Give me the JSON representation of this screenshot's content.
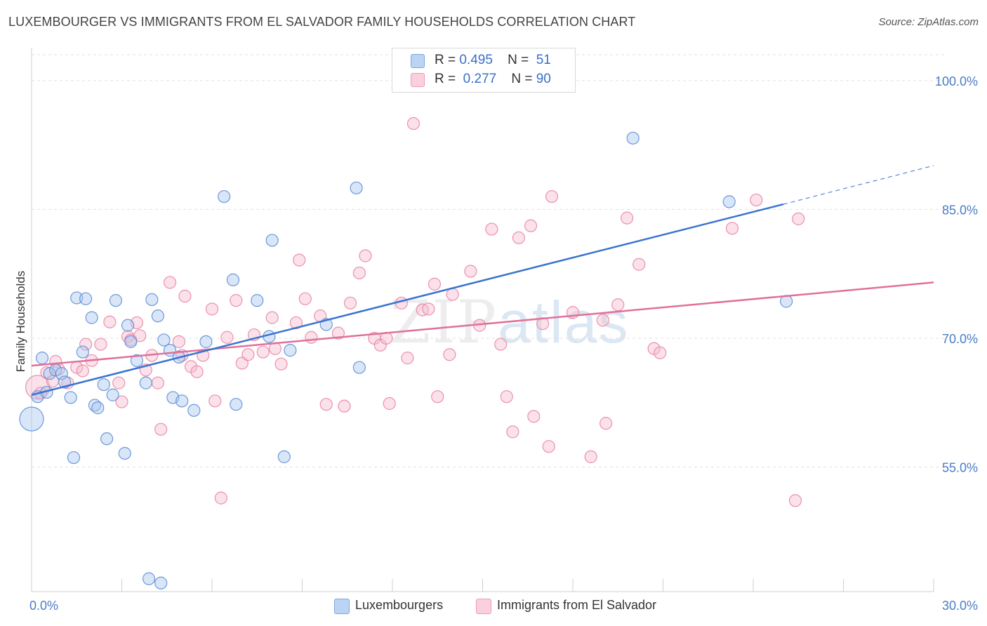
{
  "title": "LUXEMBOURGER VS IMMIGRANTS FROM EL SALVADOR FAMILY HOUSEHOLDS CORRELATION CHART",
  "source": "Source: ZipAtlas.com",
  "watermark": {
    "zip": "ZIP",
    "atlas": "atlas"
  },
  "legend_top": [
    {
      "r_label": "R =",
      "r_value": "0.495",
      "n_label": "N =",
      "n_value": "51"
    },
    {
      "r_label": "R =",
      "r_value": "0.277",
      "n_label": "N =",
      "n_value": "90"
    }
  ],
  "colors": {
    "blue_fill": "#a9c8f0",
    "blue_stroke": "#5e8fd6",
    "blue_line": "#3a73d0",
    "pink_fill": "#f7bccf",
    "pink_stroke": "#e986a6",
    "pink_line": "#e0709a",
    "tick_label": "#4a7cc7",
    "grid": "#e0e0e0"
  },
  "chart_data": {
    "type": "scatter",
    "title": "LUXEMBOURGER VS IMMIGRANTS FROM EL SALVADOR FAMILY HOUSEHOLDS CORRELATION CHART",
    "xlabel": "",
    "ylabel": "Family Households",
    "xlim": [
      0,
      30
    ],
    "ylim": [
      40.5,
      103.5
    ],
    "x_tick_labels": [
      "0.0%",
      "30.0%"
    ],
    "y_ticks": [
      55,
      70,
      85,
      100
    ],
    "y_tick_labels": [
      "55.0%",
      "70.0%",
      "85.0%",
      "100.0%"
    ],
    "grid": true,
    "legend": "top-center and bottom-center",
    "series": [
      {
        "name": "Luxembourgers",
        "r": 0.495,
        "n": 51,
        "trend": {
          "x": [
            0.0,
            25.0
          ],
          "y": [
            63.4,
            85.6
          ],
          "dashed_to": [
            30.0,
            90.1
          ]
        },
        "points": [
          {
            "x": 0.0,
            "y": 60.6,
            "big": true
          },
          {
            "x": 0.2,
            "y": 63.2
          },
          {
            "x": 0.35,
            "y": 67.7
          },
          {
            "x": 0.5,
            "y": 63.7
          },
          {
            "x": 0.6,
            "y": 65.9
          },
          {
            "x": 0.8,
            "y": 66.3
          },
          {
            "x": 1.0,
            "y": 65.9
          },
          {
            "x": 1.1,
            "y": 64.9
          },
          {
            "x": 1.3,
            "y": 63.1
          },
          {
            "x": 1.4,
            "y": 56.1
          },
          {
            "x": 1.5,
            "y": 74.7
          },
          {
            "x": 1.7,
            "y": 68.4
          },
          {
            "x": 1.8,
            "y": 74.6
          },
          {
            "x": 2.0,
            "y": 72.4
          },
          {
            "x": 2.1,
            "y": 62.2
          },
          {
            "x": 2.2,
            "y": 61.9
          },
          {
            "x": 2.4,
            "y": 64.6
          },
          {
            "x": 2.5,
            "y": 58.3
          },
          {
            "x": 2.7,
            "y": 63.4
          },
          {
            "x": 2.8,
            "y": 74.4
          },
          {
            "x": 3.1,
            "y": 56.6
          },
          {
            "x": 3.2,
            "y": 71.5
          },
          {
            "x": 3.3,
            "y": 69.6
          },
          {
            "x": 3.5,
            "y": 67.4
          },
          {
            "x": 3.8,
            "y": 64.8
          },
          {
            "x": 3.9,
            "y": 42.0
          },
          {
            "x": 4.0,
            "y": 74.5
          },
          {
            "x": 4.2,
            "y": 72.6
          },
          {
            "x": 4.3,
            "y": 41.5
          },
          {
            "x": 4.4,
            "y": 69.8
          },
          {
            "x": 4.6,
            "y": 68.6
          },
          {
            "x": 4.7,
            "y": 63.1
          },
          {
            "x": 4.9,
            "y": 67.8
          },
          {
            "x": 5.0,
            "y": 62.7
          },
          {
            "x": 5.4,
            "y": 61.6
          },
          {
            "x": 5.8,
            "y": 69.6
          },
          {
            "x": 6.4,
            "y": 86.5
          },
          {
            "x": 6.7,
            "y": 76.8
          },
          {
            "x": 6.8,
            "y": 62.3
          },
          {
            "x": 7.5,
            "y": 74.4
          },
          {
            "x": 7.9,
            "y": 70.2
          },
          {
            "x": 8.0,
            "y": 81.4
          },
          {
            "x": 8.4,
            "y": 56.2
          },
          {
            "x": 8.6,
            "y": 68.6
          },
          {
            "x": 9.8,
            "y": 71.6
          },
          {
            "x": 10.8,
            "y": 87.5
          },
          {
            "x": 10.9,
            "y": 66.6
          },
          {
            "x": 20.0,
            "y": 93.3
          },
          {
            "x": 23.2,
            "y": 85.9
          },
          {
            "x": 25.1,
            "y": 74.3
          }
        ]
      },
      {
        "name": "Immigrants from El Salvador",
        "r": 0.277,
        "n": 90,
        "trend": {
          "x": [
            0.0,
            30.0
          ],
          "y": [
            66.8,
            76.5
          ]
        },
        "points": [
          {
            "x": 0.2,
            "y": 64.3,
            "big": true
          },
          {
            "x": 0.3,
            "y": 63.6
          },
          {
            "x": 0.5,
            "y": 66.0
          },
          {
            "x": 0.7,
            "y": 65.0
          },
          {
            "x": 0.8,
            "y": 67.3
          },
          {
            "x": 0.9,
            "y": 66.4
          },
          {
            "x": 1.2,
            "y": 64.8
          },
          {
            "x": 1.5,
            "y": 66.6
          },
          {
            "x": 1.7,
            "y": 66.2
          },
          {
            "x": 1.8,
            "y": 69.3
          },
          {
            "x": 2.0,
            "y": 67.4
          },
          {
            "x": 2.3,
            "y": 69.3
          },
          {
            "x": 2.6,
            "y": 71.9
          },
          {
            "x": 2.9,
            "y": 64.8
          },
          {
            "x": 3.0,
            "y": 62.6
          },
          {
            "x": 3.2,
            "y": 70.2
          },
          {
            "x": 3.3,
            "y": 69.8
          },
          {
            "x": 3.5,
            "y": 71.8
          },
          {
            "x": 3.6,
            "y": 70.3
          },
          {
            "x": 3.8,
            "y": 66.3
          },
          {
            "x": 4.0,
            "y": 68.0
          },
          {
            "x": 4.2,
            "y": 64.8
          },
          {
            "x": 4.3,
            "y": 59.4
          },
          {
            "x": 4.6,
            "y": 76.5
          },
          {
            "x": 4.9,
            "y": 69.6
          },
          {
            "x": 5.0,
            "y": 68.0
          },
          {
            "x": 5.1,
            "y": 74.9
          },
          {
            "x": 5.3,
            "y": 66.7
          },
          {
            "x": 5.5,
            "y": 66.1
          },
          {
            "x": 5.7,
            "y": 68.0
          },
          {
            "x": 6.0,
            "y": 73.4
          },
          {
            "x": 6.1,
            "y": 62.7
          },
          {
            "x": 6.3,
            "y": 51.4
          },
          {
            "x": 6.5,
            "y": 70.1
          },
          {
            "x": 6.8,
            "y": 74.4
          },
          {
            "x": 7.0,
            "y": 67.1
          },
          {
            "x": 7.2,
            "y": 68.1
          },
          {
            "x": 7.4,
            "y": 70.4
          },
          {
            "x": 7.7,
            "y": 68.4
          },
          {
            "x": 8.0,
            "y": 72.4
          },
          {
            "x": 8.1,
            "y": 68.8
          },
          {
            "x": 8.3,
            "y": 67.0
          },
          {
            "x": 8.8,
            "y": 71.8
          },
          {
            "x": 8.9,
            "y": 79.1
          },
          {
            "x": 9.1,
            "y": 74.6
          },
          {
            "x": 9.3,
            "y": 70.1
          },
          {
            "x": 9.6,
            "y": 72.6
          },
          {
            "x": 9.8,
            "y": 62.3
          },
          {
            "x": 10.2,
            "y": 70.6
          },
          {
            "x": 10.4,
            "y": 62.1
          },
          {
            "x": 10.6,
            "y": 74.1
          },
          {
            "x": 10.9,
            "y": 77.6
          },
          {
            "x": 11.1,
            "y": 79.6
          },
          {
            "x": 11.4,
            "y": 70.0
          },
          {
            "x": 11.6,
            "y": 69.2
          },
          {
            "x": 11.8,
            "y": 70.0
          },
          {
            "x": 11.9,
            "y": 62.4
          },
          {
            "x": 12.3,
            "y": 74.1
          },
          {
            "x": 12.5,
            "y": 67.7
          },
          {
            "x": 12.7,
            "y": 95.0
          },
          {
            "x": 13.0,
            "y": 73.3
          },
          {
            "x": 13.2,
            "y": 73.4
          },
          {
            "x": 13.4,
            "y": 76.3
          },
          {
            "x": 13.5,
            "y": 63.2
          },
          {
            "x": 13.9,
            "y": 68.1
          },
          {
            "x": 14.0,
            "y": 75.1
          },
          {
            "x": 14.6,
            "y": 77.8
          },
          {
            "x": 14.9,
            "y": 71.5
          },
          {
            "x": 15.3,
            "y": 82.7
          },
          {
            "x": 15.6,
            "y": 69.3
          },
          {
            "x": 15.8,
            "y": 63.2
          },
          {
            "x": 16.0,
            "y": 59.1
          },
          {
            "x": 16.2,
            "y": 81.7
          },
          {
            "x": 16.6,
            "y": 83.1
          },
          {
            "x": 16.7,
            "y": 60.9
          },
          {
            "x": 17.0,
            "y": 71.7
          },
          {
            "x": 17.2,
            "y": 57.4
          },
          {
            "x": 17.3,
            "y": 86.5
          },
          {
            "x": 18.0,
            "y": 73.0
          },
          {
            "x": 18.6,
            "y": 56.2
          },
          {
            "x": 19.0,
            "y": 72.1
          },
          {
            "x": 19.1,
            "y": 60.1
          },
          {
            "x": 19.5,
            "y": 73.9
          },
          {
            "x": 19.8,
            "y": 84.0
          },
          {
            "x": 20.2,
            "y": 78.6
          },
          {
            "x": 20.7,
            "y": 68.8
          },
          {
            "x": 20.9,
            "y": 68.3
          },
          {
            "x": 23.3,
            "y": 82.8
          },
          {
            "x": 24.1,
            "y": 86.1
          },
          {
            "x": 25.4,
            "y": 51.1
          },
          {
            "x": 25.5,
            "y": 83.9
          }
        ]
      }
    ]
  }
}
